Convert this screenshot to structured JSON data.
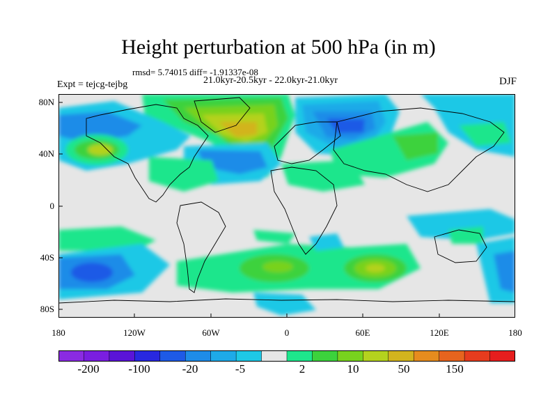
{
  "title": "Height perturbation at 500 hPa (in m)",
  "stats_line": "rmsd= 5.74015 diff= -1.91337e-08",
  "period_line": "21.0kyr-20.5kyr - 22.0kyr-21.0kyr",
  "experiment": "Expt = tejcg-tejbg",
  "season": "DJF",
  "axes": {
    "lon_ticks": [
      "180",
      "120W",
      "60W",
      "0",
      "60E",
      "120E",
      "180"
    ],
    "lat_ticks": [
      "80N",
      "40N",
      "0",
      "40S",
      "80S"
    ]
  },
  "colorbar": {
    "colors": [
      "#8a2be2",
      "#7a1ee0",
      "#5a14d8",
      "#2828e0",
      "#1e5ae6",
      "#1e8ce8",
      "#1eaae8",
      "#1ec8e6",
      "#e6e6e6",
      "#1ee68c",
      "#3cd23c",
      "#78d21e",
      "#b4d21e",
      "#d2b41e",
      "#e68c1e",
      "#e6641e",
      "#e63c1e",
      "#e61e1e"
    ],
    "labels": [
      "-200",
      "-100",
      "-20",
      "-5",
      "2",
      "10",
      "50",
      "150"
    ]
  }
}
